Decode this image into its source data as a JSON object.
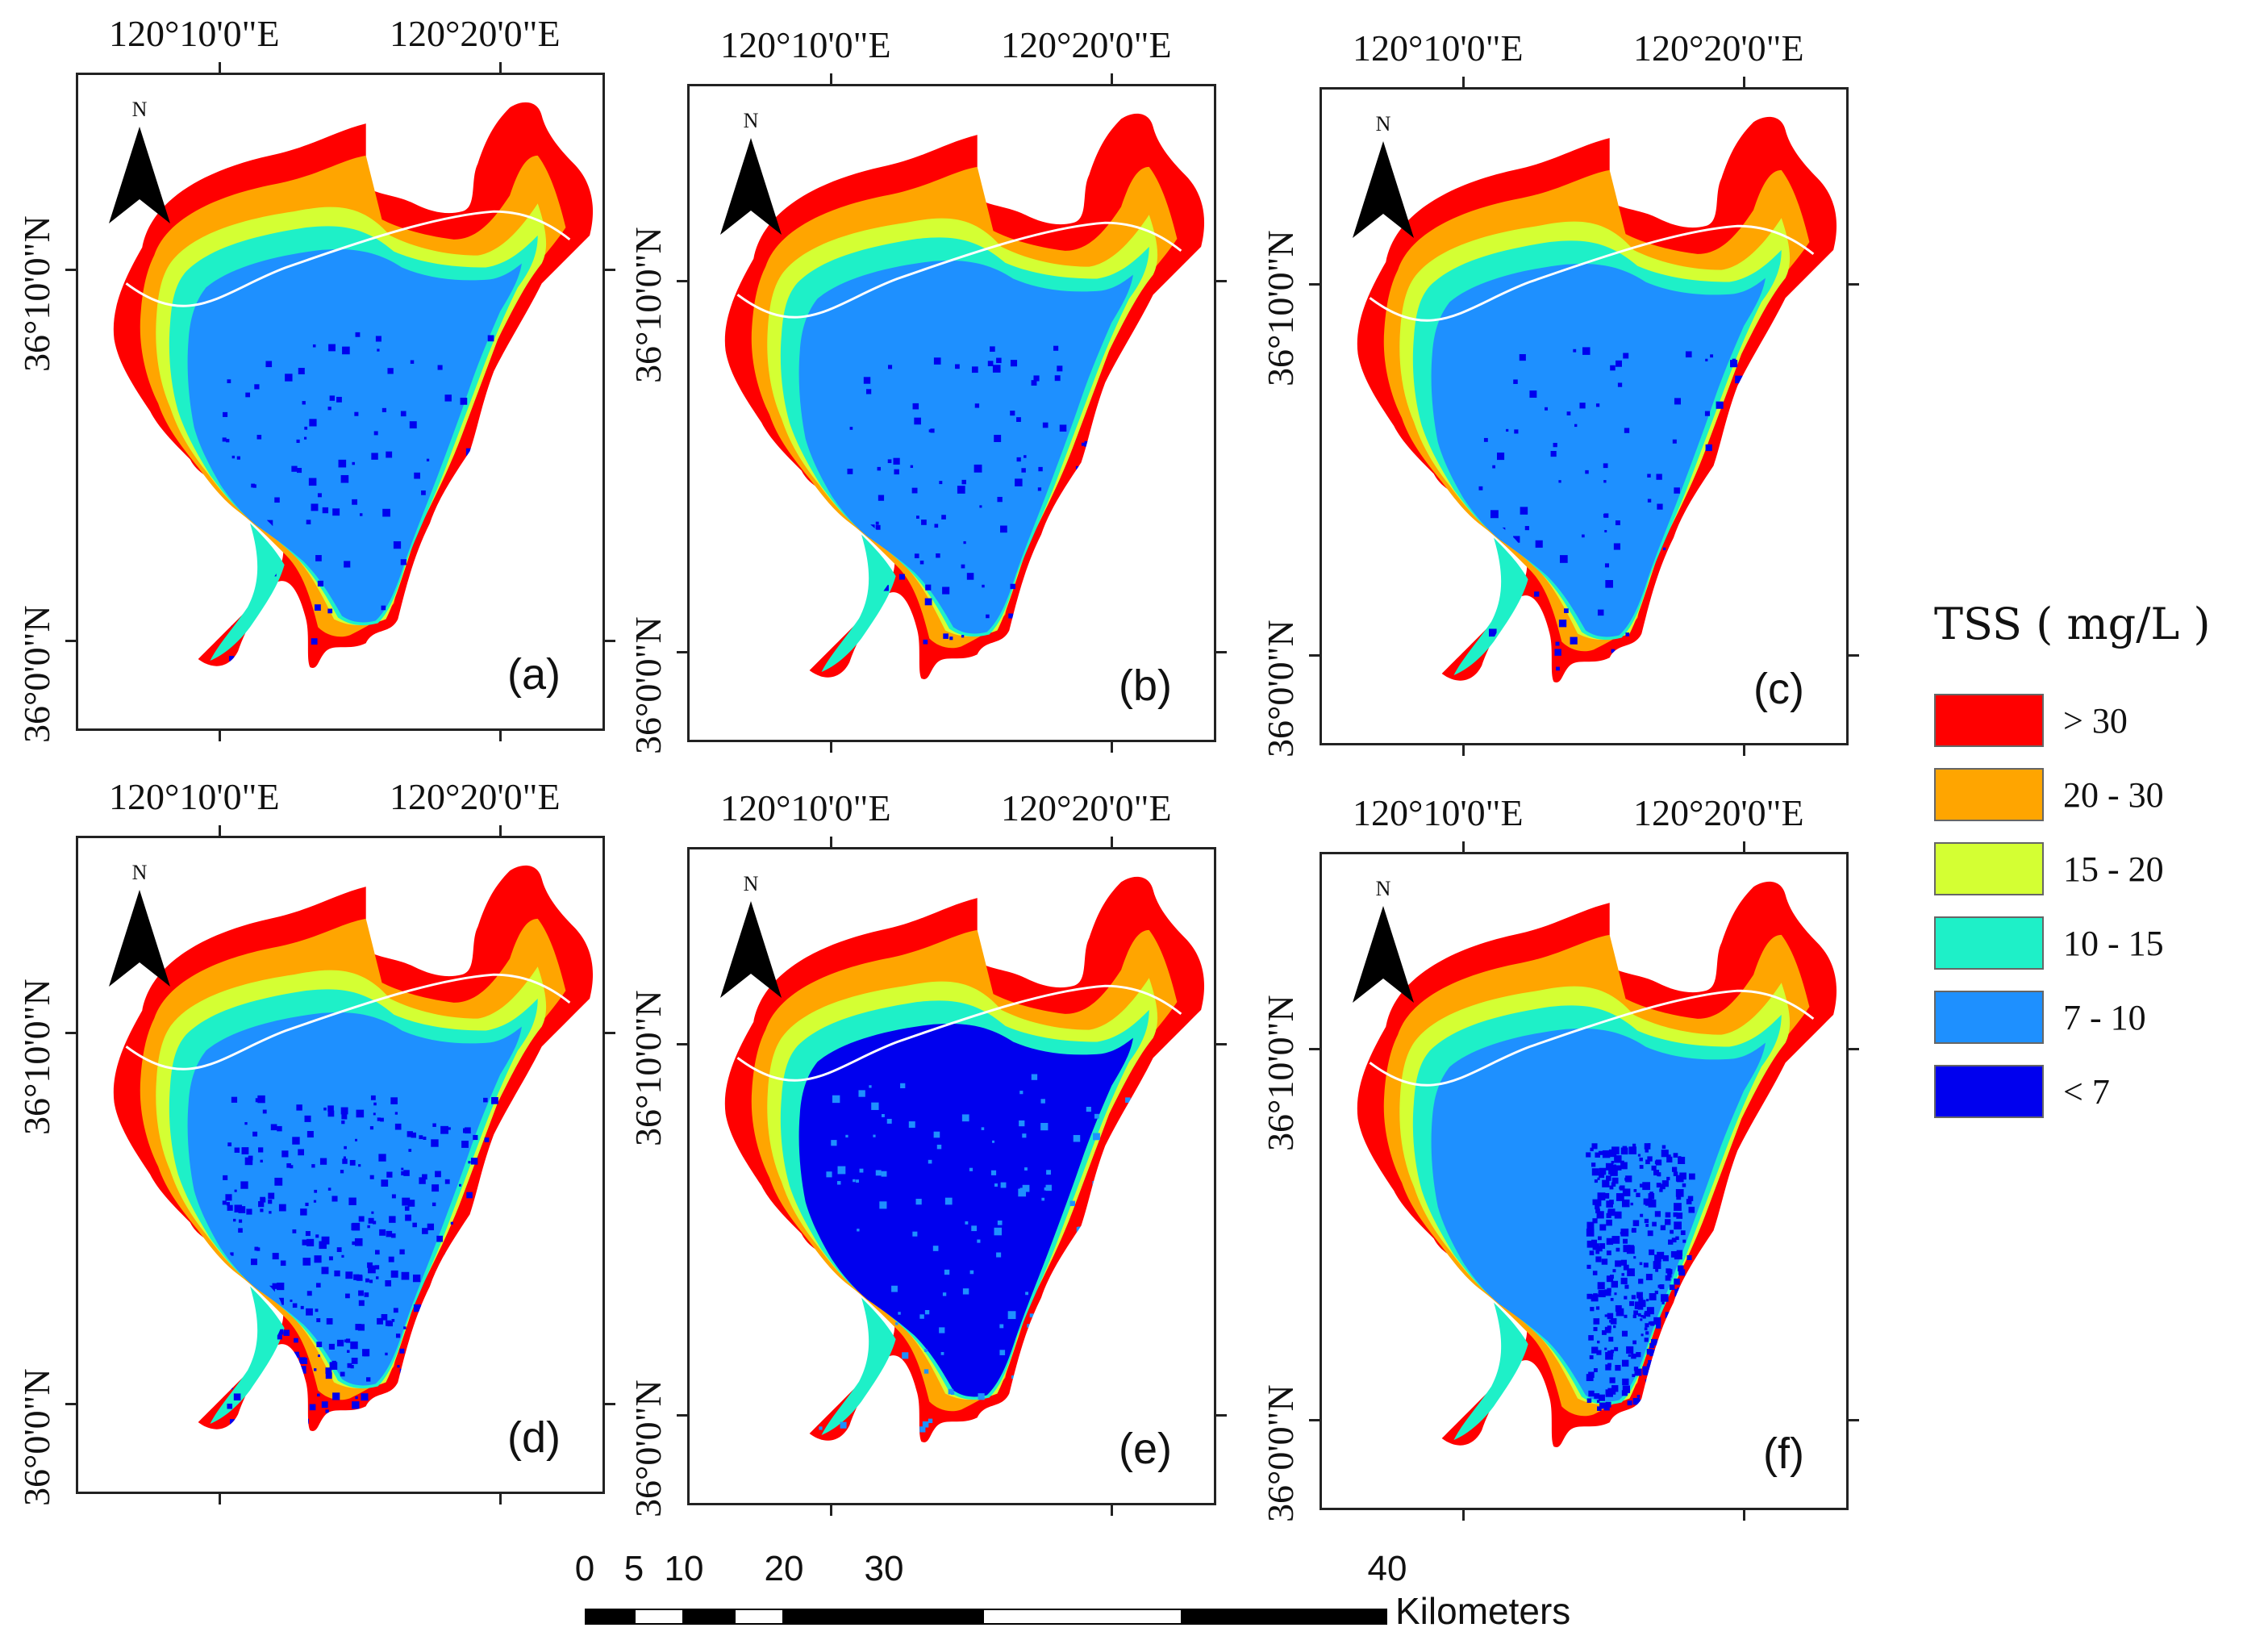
{
  "figure": {
    "lon_labels": [
      "120°10'0\"E",
      "120°20'0\"E"
    ],
    "lat_labels": [
      "36°10'0\"N",
      "36°0'0\"N"
    ],
    "north_letter": "N",
    "panels": [
      {
        "label": "(a)",
        "scene": "moderate"
      },
      {
        "label": "(b)",
        "scene": "moderate"
      },
      {
        "label": "(c)",
        "scene": "moderate"
      },
      {
        "label": "(d)",
        "scene": "patchy-low"
      },
      {
        "label": "(e)",
        "scene": "low"
      },
      {
        "label": "(f)",
        "scene": "central-low"
      }
    ]
  },
  "legend": {
    "title": "TSS ( mg/L )",
    "classes": [
      {
        "label": "> 30",
        "color": "#ff0000"
      },
      {
        "label": "20 - 30",
        "color": "#ffa500"
      },
      {
        "label": "15 - 20",
        "color": "#d4ff33"
      },
      {
        "label": "10 - 15",
        "color": "#1ef0c8"
      },
      {
        "label": "7 - 10",
        "color": "#1e90ff"
      },
      {
        "label": "< 7",
        "color": "#0000ee"
      }
    ]
  },
  "scale_bar": {
    "unit": "Kilometers",
    "ticks": [
      "0",
      "5",
      "10",
      "20",
      "30",
      "40"
    ]
  }
}
